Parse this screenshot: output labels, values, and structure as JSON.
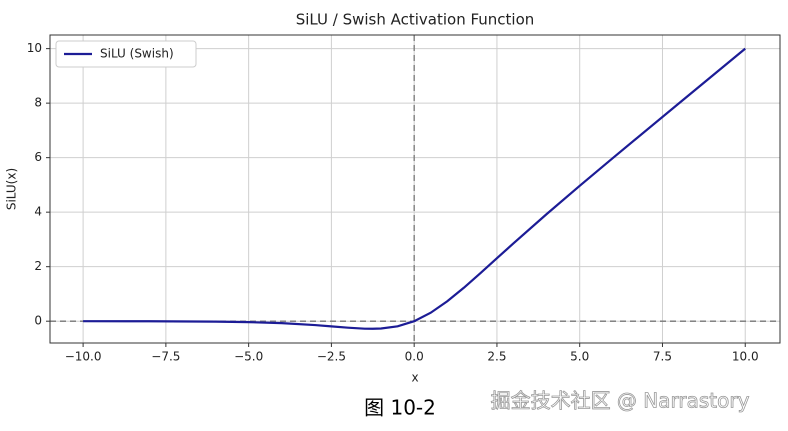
{
  "chart_data": {
    "type": "line",
    "title": "SiLU / Swish Activation Function",
    "x_label": "x",
    "y_label": "SiLU(x)",
    "x": [
      -10,
      -8,
      -6,
      -5,
      -4,
      -3,
      -2.5,
      -2,
      -1.5,
      -1.25,
      -1,
      -0.5,
      0,
      0.5,
      1,
      1.5,
      2,
      2.5,
      3,
      4,
      5,
      6,
      8,
      10
    ],
    "series": [
      {
        "name": "SiLU (Swish)",
        "color": "#1c1c96",
        "values": [
          0.0,
          -0.003,
          -0.015,
          -0.034,
          -0.072,
          -0.142,
          -0.189,
          -0.238,
          -0.274,
          -0.278,
          -0.269,
          -0.189,
          0,
          0.311,
          0.731,
          1.226,
          1.762,
          2.311,
          2.858,
          3.928,
          4.967,
          5.985,
          7.997,
          10.0
        ]
      }
    ],
    "xlim": [
      -11,
      11.05
    ],
    "ylim": [
      -0.8,
      10.5
    ],
    "xticks": [
      {
        "value": -10,
        "label": "−10.0"
      },
      {
        "value": -7.5,
        "label": "−7.5"
      },
      {
        "value": -5,
        "label": "−5.0"
      },
      {
        "value": -2.5,
        "label": "−2.5"
      },
      {
        "value": 0,
        "label": "0.0"
      },
      {
        "value": 2.5,
        "label": "2.5"
      },
      {
        "value": 5,
        "label": "5.0"
      },
      {
        "value": 7.5,
        "label": "7.5"
      },
      {
        "value": 10,
        "label": "10.0"
      }
    ],
    "yticks": [
      0,
      2,
      4,
      6,
      8,
      10
    ],
    "grid": true,
    "legend": "upper-left",
    "vlines": [
      0
    ],
    "hlines": [
      0
    ]
  },
  "caption": "图 10-2",
  "watermark": "掘金技术社区 @ Narrastory"
}
